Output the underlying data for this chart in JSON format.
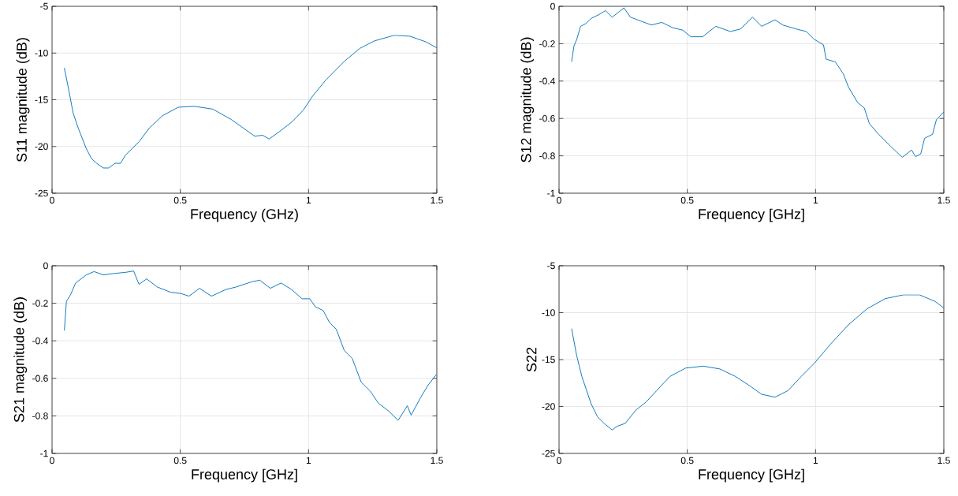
{
  "chart_data": [
    {
      "type": "line",
      "xlabel": "Frequency (GHz)",
      "ylabel": "S11 magnitude (dB)",
      "xlim": [
        0,
        1.5
      ],
      "xticks": [
        0,
        0.5,
        1,
        1.5
      ],
      "ylim": [
        -25,
        -5
      ],
      "yticks": [
        -25,
        -20,
        -15,
        -10,
        -5
      ],
      "grid": true,
      "series": [
        {
          "color": "#0072bd",
          "x": [
            0.048,
            0.067,
            0.082,
            0.103,
            0.133,
            0.154,
            0.174,
            0.2,
            0.22,
            0.246,
            0.267,
            0.287,
            0.339,
            0.38,
            0.431,
            0.492,
            0.554,
            0.626,
            0.698,
            0.739,
            0.79,
            0.821,
            0.846,
            0.882,
            0.934,
            0.98,
            1.016,
            1.067,
            1.139,
            1.2,
            1.257,
            1.334,
            1.395,
            1.457,
            1.5
          ],
          "values": [
            -11.6,
            -14.2,
            -16.4,
            -18.1,
            -20.2,
            -21.3,
            -21.8,
            -22.3,
            -22.3,
            -21.8,
            -21.8,
            -20.9,
            -19.5,
            -18.0,
            -16.7,
            -15.8,
            -15.7,
            -16.0,
            -17.1,
            -17.9,
            -18.9,
            -18.8,
            -19.2,
            -18.5,
            -17.4,
            -16.1,
            -14.6,
            -12.9,
            -10.9,
            -9.5,
            -8.7,
            -8.1,
            -8.2,
            -8.8,
            -9.45
          ]
        }
      ]
    },
    {
      "type": "line",
      "xlabel": "Frequency [GHz]",
      "ylabel": "S12 magnitude (dB)",
      "xlim": [
        0,
        1.5
      ],
      "xticks": [
        0,
        0.5,
        1,
        1.5
      ],
      "ylim": [
        -1,
        0
      ],
      "yticks": [
        -1,
        -0.8,
        -0.6,
        -0.4,
        -0.2,
        0
      ],
      "grid": true,
      "series": [
        {
          "color": "#0072bd",
          "x": [
            0.049,
            0.058,
            0.069,
            0.084,
            0.104,
            0.125,
            0.156,
            0.181,
            0.207,
            0.227,
            0.253,
            0.278,
            0.319,
            0.36,
            0.401,
            0.442,
            0.483,
            0.514,
            0.56,
            0.611,
            0.668,
            0.708,
            0.754,
            0.79,
            0.842,
            0.872,
            0.924,
            0.964,
            0.995,
            1.031,
            1.041,
            1.077,
            1.108,
            1.128,
            1.164,
            1.19,
            1.21,
            1.246,
            1.292,
            1.338,
            1.374,
            1.39,
            1.41,
            1.425,
            1.456,
            1.471,
            1.5
          ],
          "values": [
            -0.297,
            -0.213,
            -0.177,
            -0.107,
            -0.093,
            -0.065,
            -0.044,
            -0.023,
            -0.058,
            -0.037,
            -0.008,
            -0.058,
            -0.079,
            -0.1,
            -0.086,
            -0.114,
            -0.128,
            -0.163,
            -0.163,
            -0.107,
            -0.135,
            -0.121,
            -0.058,
            -0.107,
            -0.072,
            -0.1,
            -0.121,
            -0.135,
            -0.177,
            -0.206,
            -0.283,
            -0.297,
            -0.361,
            -0.431,
            -0.515,
            -0.544,
            -0.628,
            -0.685,
            -0.748,
            -0.808,
            -0.769,
            -0.804,
            -0.79,
            -0.706,
            -0.685,
            -0.607,
            -0.565
          ]
        }
      ]
    },
    {
      "type": "line",
      "xlabel": "Frequency [GHz]",
      "ylabel": "S21 magnitude (dB)",
      "xlim": [
        0,
        1.5
      ],
      "xticks": [
        0,
        0.5,
        1,
        1.5
      ],
      "ylim": [
        -1,
        0
      ],
      "yticks": [
        -1,
        -0.8,
        -0.6,
        -0.4,
        -0.2,
        0
      ],
      "grid": true,
      "series": [
        {
          "color": "#0072bd",
          "x": [
            0.048,
            0.056,
            0.072,
            0.092,
            0.113,
            0.133,
            0.164,
            0.2,
            0.236,
            0.287,
            0.318,
            0.339,
            0.369,
            0.41,
            0.462,
            0.503,
            0.534,
            0.575,
            0.621,
            0.677,
            0.718,
            0.78,
            0.81,
            0.851,
            0.893,
            0.934,
            0.975,
            1.005,
            1.026,
            1.057,
            1.082,
            1.108,
            1.139,
            1.17,
            1.205,
            1.241,
            1.272,
            1.313,
            1.349,
            1.385,
            1.4,
            1.436,
            1.467,
            1.5
          ],
          "values": [
            -0.345,
            -0.19,
            -0.155,
            -0.092,
            -0.07,
            -0.049,
            -0.031,
            -0.049,
            -0.042,
            -0.035,
            -0.028,
            -0.099,
            -0.07,
            -0.113,
            -0.141,
            -0.148,
            -0.162,
            -0.12,
            -0.162,
            -0.127,
            -0.113,
            -0.085,
            -0.077,
            -0.12,
            -0.092,
            -0.127,
            -0.176,
            -0.176,
            -0.218,
            -0.239,
            -0.303,
            -0.338,
            -0.451,
            -0.493,
            -0.62,
            -0.669,
            -0.732,
            -0.775,
            -0.824,
            -0.746,
            -0.796,
            -0.704,
            -0.634,
            -0.577
          ]
        }
      ]
    },
    {
      "type": "line",
      "xlabel": "Frequency [GHz]",
      "ylabel": "S22",
      "xlim": [
        0,
        1.5
      ],
      "xticks": [
        0,
        0.5,
        1,
        1.5
      ],
      "ylim": [
        -25,
        -5
      ],
      "yticks": [
        -25,
        -20,
        -15,
        -10,
        -5
      ],
      "grid": true,
      "series": [
        {
          "color": "#0072bd",
          "x": [
            0.049,
            0.069,
            0.089,
            0.125,
            0.15,
            0.176,
            0.207,
            0.227,
            0.258,
            0.299,
            0.34,
            0.381,
            0.432,
            0.494,
            0.563,
            0.627,
            0.688,
            0.749,
            0.79,
            0.842,
            0.893,
            0.944,
            0.995,
            1.057,
            1.128,
            1.2,
            1.272,
            1.343,
            1.405,
            1.466,
            1.5
          ],
          "values": [
            -11.7,
            -14.6,
            -16.8,
            -19.7,
            -21.1,
            -21.8,
            -22.5,
            -22.1,
            -21.8,
            -20.4,
            -19.5,
            -18.3,
            -16.8,
            -15.9,
            -15.7,
            -16.0,
            -16.8,
            -17.9,
            -18.7,
            -19.0,
            -18.3,
            -16.8,
            -15.4,
            -13.4,
            -11.3,
            -9.6,
            -8.5,
            -8.1,
            -8.1,
            -8.8,
            -9.5
          ]
        }
      ]
    }
  ]
}
